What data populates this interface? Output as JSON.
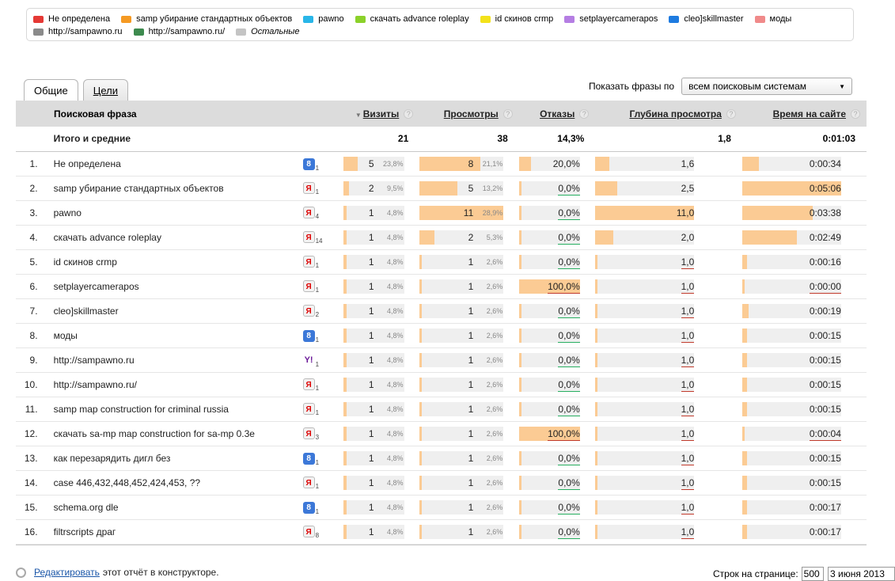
{
  "legend": {
    "rows": [
      [
        {
          "label": "Не определена",
          "color": "#e53935"
        },
        {
          "label": "samp убирание стандартных объектов",
          "color": "#f59a23"
        },
        {
          "label": "pawno",
          "color": "#29b6e8"
        },
        {
          "label": "скачать advance roleplay",
          "color": "#8bd12a"
        },
        {
          "label": "id скинов crmp",
          "color": "#f3e21b"
        },
        {
          "label": "setplayercamerapos",
          "color": "#b57ee3"
        },
        {
          "label": "cleo]skillmaster",
          "color": "#1e7be0"
        },
        {
          "label": "моды",
          "color": "#f08a8a"
        }
      ],
      [
        {
          "label": "http://sampawno.ru",
          "color": "#8a8a8a"
        },
        {
          "label": "http://sampawno.ru/",
          "color": "#3d8a4e"
        },
        {
          "label": "Остальные",
          "color": "#c4c4c4",
          "italic": true
        }
      ]
    ]
  },
  "tabs": [
    {
      "label": "Общие",
      "active": true
    },
    {
      "label": "Цели",
      "active": false
    }
  ],
  "filter": {
    "label": "Показать фразы по",
    "selected": "всем поисковым системам"
  },
  "columns": {
    "phrase": "Поисковая фраза",
    "visits": "Визиты",
    "views": "Просмотры",
    "bounces": "Отказы",
    "depth": "Глубина просмотра",
    "time": "Время на сайте"
  },
  "totals": {
    "label": "Итого и средние",
    "visits": "21",
    "views": "38",
    "bounces": "14,3%",
    "depth": "1,8",
    "time": "0:01:03"
  },
  "rows": [
    {
      "n": "1.",
      "phrase": "Не определена",
      "engine": "g",
      "engine_count": "1",
      "visits": "5",
      "visits_pct": "23,8%",
      "views": "8",
      "views_pct": "21,1%",
      "bounces": "20,0%",
      "depth": "1,6",
      "time": "0:00:34",
      "visits_frac": 0.238,
      "views_frac": 0.727,
      "bounce_frac": 0.2,
      "depth_frac": 0.145,
      "time_frac": 0.17,
      "bounce_ul": "none",
      "depth_ul": "none",
      "time_ul": "none"
    },
    {
      "n": "2.",
      "phrase": "samp убирание стандартных объектов",
      "engine": "y",
      "engine_count": "1",
      "visits": "2",
      "visits_pct": "9,5%",
      "views": "5",
      "views_pct": "13,2%",
      "bounces": "0,0%",
      "depth": "2,5",
      "time": "0:05:06",
      "visits_frac": 0.095,
      "views_frac": 0.455,
      "bounce_frac": 0.0,
      "depth_frac": 0.227,
      "time_frac": 1.0,
      "bounce_ul": "green",
      "depth_ul": "none",
      "time_ul": "none"
    },
    {
      "n": "3.",
      "phrase": "pawno",
      "engine": "y",
      "engine_count": "4",
      "visits": "1",
      "visits_pct": "4,8%",
      "views": "11",
      "views_pct": "28,9%",
      "bounces": "0,0%",
      "depth": "11,0",
      "time": "0:03:38",
      "visits_frac": 0.048,
      "views_frac": 1.0,
      "bounce_frac": 0.0,
      "depth_frac": 1.0,
      "time_frac": 0.71,
      "bounce_ul": "green",
      "depth_ul": "none",
      "time_ul": "none"
    },
    {
      "n": "4.",
      "phrase": "скачать advance roleplay",
      "engine": "y",
      "engine_count": "14",
      "visits": "1",
      "visits_pct": "4,8%",
      "views": "2",
      "views_pct": "5,3%",
      "bounces": "0,0%",
      "depth": "2,0",
      "time": "0:02:49",
      "visits_frac": 0.048,
      "views_frac": 0.182,
      "bounce_frac": 0.0,
      "depth_frac": 0.182,
      "time_frac": 0.55,
      "bounce_ul": "green",
      "depth_ul": "none",
      "time_ul": "none"
    },
    {
      "n": "5.",
      "phrase": "id скинов crmp",
      "engine": "y",
      "engine_count": "1",
      "visits": "1",
      "visits_pct": "4,8%",
      "views": "1",
      "views_pct": "2,6%",
      "bounces": "0,0%",
      "depth": "1,0",
      "time": "0:00:16",
      "visits_frac": 0.048,
      "views_frac": 0.02,
      "bounce_frac": 0.0,
      "depth_frac": 0.02,
      "time_frac": 0.05,
      "bounce_ul": "green",
      "depth_ul": "red",
      "time_ul": "none"
    },
    {
      "n": "6.",
      "phrase": "setplayercamerapos",
      "engine": "y",
      "engine_count": "1",
      "visits": "1",
      "visits_pct": "4,8%",
      "views": "1",
      "views_pct": "2,6%",
      "bounces": "100,0%",
      "depth": "1,0",
      "time": "0:00:00",
      "visits_frac": 0.048,
      "views_frac": 0.02,
      "bounce_frac": 1.0,
      "depth_frac": 0.02,
      "time_frac": 0.0,
      "bounce_ul": "red",
      "depth_ul": "red",
      "time_ul": "red"
    },
    {
      "n": "7.",
      "phrase": "cleo]skillmaster",
      "engine": "y",
      "engine_count": "2",
      "visits": "1",
      "visits_pct": "4,8%",
      "views": "1",
      "views_pct": "2,6%",
      "bounces": "0,0%",
      "depth": "1,0",
      "time": "0:00:19",
      "visits_frac": 0.048,
      "views_frac": 0.02,
      "bounce_frac": 0.0,
      "depth_frac": 0.02,
      "time_frac": 0.06,
      "bounce_ul": "green",
      "depth_ul": "red",
      "time_ul": "none"
    },
    {
      "n": "8.",
      "phrase": "моды",
      "engine": "g",
      "engine_count": "1",
      "visits": "1",
      "visits_pct": "4,8%",
      "views": "1",
      "views_pct": "2,6%",
      "bounces": "0,0%",
      "depth": "1,0",
      "time": "0:00:15",
      "visits_frac": 0.048,
      "views_frac": 0.02,
      "bounce_frac": 0.0,
      "depth_frac": 0.02,
      "time_frac": 0.05,
      "bounce_ul": "green",
      "depth_ul": "red",
      "time_ul": "none"
    },
    {
      "n": "9.",
      "phrase": "http://sampawno.ru",
      "engine": "yh",
      "engine_count": "1",
      "visits": "1",
      "visits_pct": "4,8%",
      "views": "1",
      "views_pct": "2,6%",
      "bounces": "0,0%",
      "depth": "1,0",
      "time": "0:00:15",
      "visits_frac": 0.048,
      "views_frac": 0.02,
      "bounce_frac": 0.0,
      "depth_frac": 0.02,
      "time_frac": 0.05,
      "bounce_ul": "green",
      "depth_ul": "red",
      "time_ul": "none"
    },
    {
      "n": "10.",
      "phrase": "http://sampawno.ru/",
      "engine": "y",
      "engine_count": "1",
      "visits": "1",
      "visits_pct": "4,8%",
      "views": "1",
      "views_pct": "2,6%",
      "bounces": "0,0%",
      "depth": "1,0",
      "time": "0:00:15",
      "visits_frac": 0.048,
      "views_frac": 0.02,
      "bounce_frac": 0.0,
      "depth_frac": 0.02,
      "time_frac": 0.05,
      "bounce_ul": "green",
      "depth_ul": "red",
      "time_ul": "none"
    },
    {
      "n": "11.",
      "phrase": "samp map construction for criminal russia",
      "engine": "y",
      "engine_count": "1",
      "visits": "1",
      "visits_pct": "4,8%",
      "views": "1",
      "views_pct": "2,6%",
      "bounces": "0,0%",
      "depth": "1,0",
      "time": "0:00:15",
      "visits_frac": 0.048,
      "views_frac": 0.02,
      "bounce_frac": 0.0,
      "depth_frac": 0.02,
      "time_frac": 0.05,
      "bounce_ul": "green",
      "depth_ul": "red",
      "time_ul": "none"
    },
    {
      "n": "12.",
      "phrase": "скачать sa-mp map construction for sa-mp 0.3e",
      "engine": "y",
      "engine_count": "3",
      "visits": "1",
      "visits_pct": "4,8%",
      "views": "1",
      "views_pct": "2,6%",
      "bounces": "100,0%",
      "depth": "1,0",
      "time": "0:00:04",
      "visits_frac": 0.048,
      "views_frac": 0.02,
      "bounce_frac": 1.0,
      "depth_frac": 0.02,
      "time_frac": 0.01,
      "bounce_ul": "red",
      "depth_ul": "red",
      "time_ul": "red"
    },
    {
      "n": "13.",
      "phrase": "как перезарядить дигл без",
      "engine": "g",
      "engine_count": "1",
      "visits": "1",
      "visits_pct": "4,8%",
      "views": "1",
      "views_pct": "2,6%",
      "bounces": "0,0%",
      "depth": "1,0",
      "time": "0:00:15",
      "visits_frac": 0.048,
      "views_frac": 0.02,
      "bounce_frac": 0.0,
      "depth_frac": 0.02,
      "time_frac": 0.05,
      "bounce_ul": "green",
      "depth_ul": "red",
      "time_ul": "none"
    },
    {
      "n": "14.",
      "phrase": "case 446,432,448,452,424,453, ??",
      "engine": "y",
      "engine_count": "1",
      "visits": "1",
      "visits_pct": "4,8%",
      "views": "1",
      "views_pct": "2,6%",
      "bounces": "0,0%",
      "depth": "1,0",
      "time": "0:00:15",
      "visits_frac": 0.048,
      "views_frac": 0.02,
      "bounce_frac": 0.0,
      "depth_frac": 0.02,
      "time_frac": 0.05,
      "bounce_ul": "green",
      "depth_ul": "red",
      "time_ul": "none"
    },
    {
      "n": "15.",
      "phrase": "schema.org dle",
      "engine": "g",
      "engine_count": "1",
      "visits": "1",
      "visits_pct": "4,8%",
      "views": "1",
      "views_pct": "2,6%",
      "bounces": "0,0%",
      "depth": "1,0",
      "time": "0:00:17",
      "visits_frac": 0.048,
      "views_frac": 0.02,
      "bounce_frac": 0.0,
      "depth_frac": 0.02,
      "time_frac": 0.05,
      "bounce_ul": "green",
      "depth_ul": "red",
      "time_ul": "none"
    },
    {
      "n": "16.",
      "phrase": "filtrscripts драг",
      "engine": "y",
      "engine_count": "8",
      "visits": "1",
      "visits_pct": "4,8%",
      "views": "1",
      "views_pct": "2,6%",
      "bounces": "0,0%",
      "depth": "1,0",
      "time": "0:00:17",
      "visits_frac": 0.048,
      "views_frac": 0.02,
      "bounce_frac": 0.0,
      "depth_frac": 0.02,
      "time_frac": 0.05,
      "bounce_ul": "green",
      "depth_ul": "red",
      "time_ul": "none"
    }
  ],
  "engines": {
    "g": "8",
    "y": "Я",
    "yh": "Y!"
  },
  "footer": {
    "edit_link": "Редактировать",
    "edit_suffix": "этот отчёт в конструкторе.",
    "rows_label": "Строк на странице:",
    "rows_value": "500",
    "date": "3 июня 2013"
  },
  "colors": {
    "bar_fill": "#fbcb94",
    "bar_track": "#efefef",
    "header_bg": "#dcdcdc",
    "link": "#1a56a8",
    "red_underline": "#c0392b",
    "green_underline": "#27ae60"
  }
}
